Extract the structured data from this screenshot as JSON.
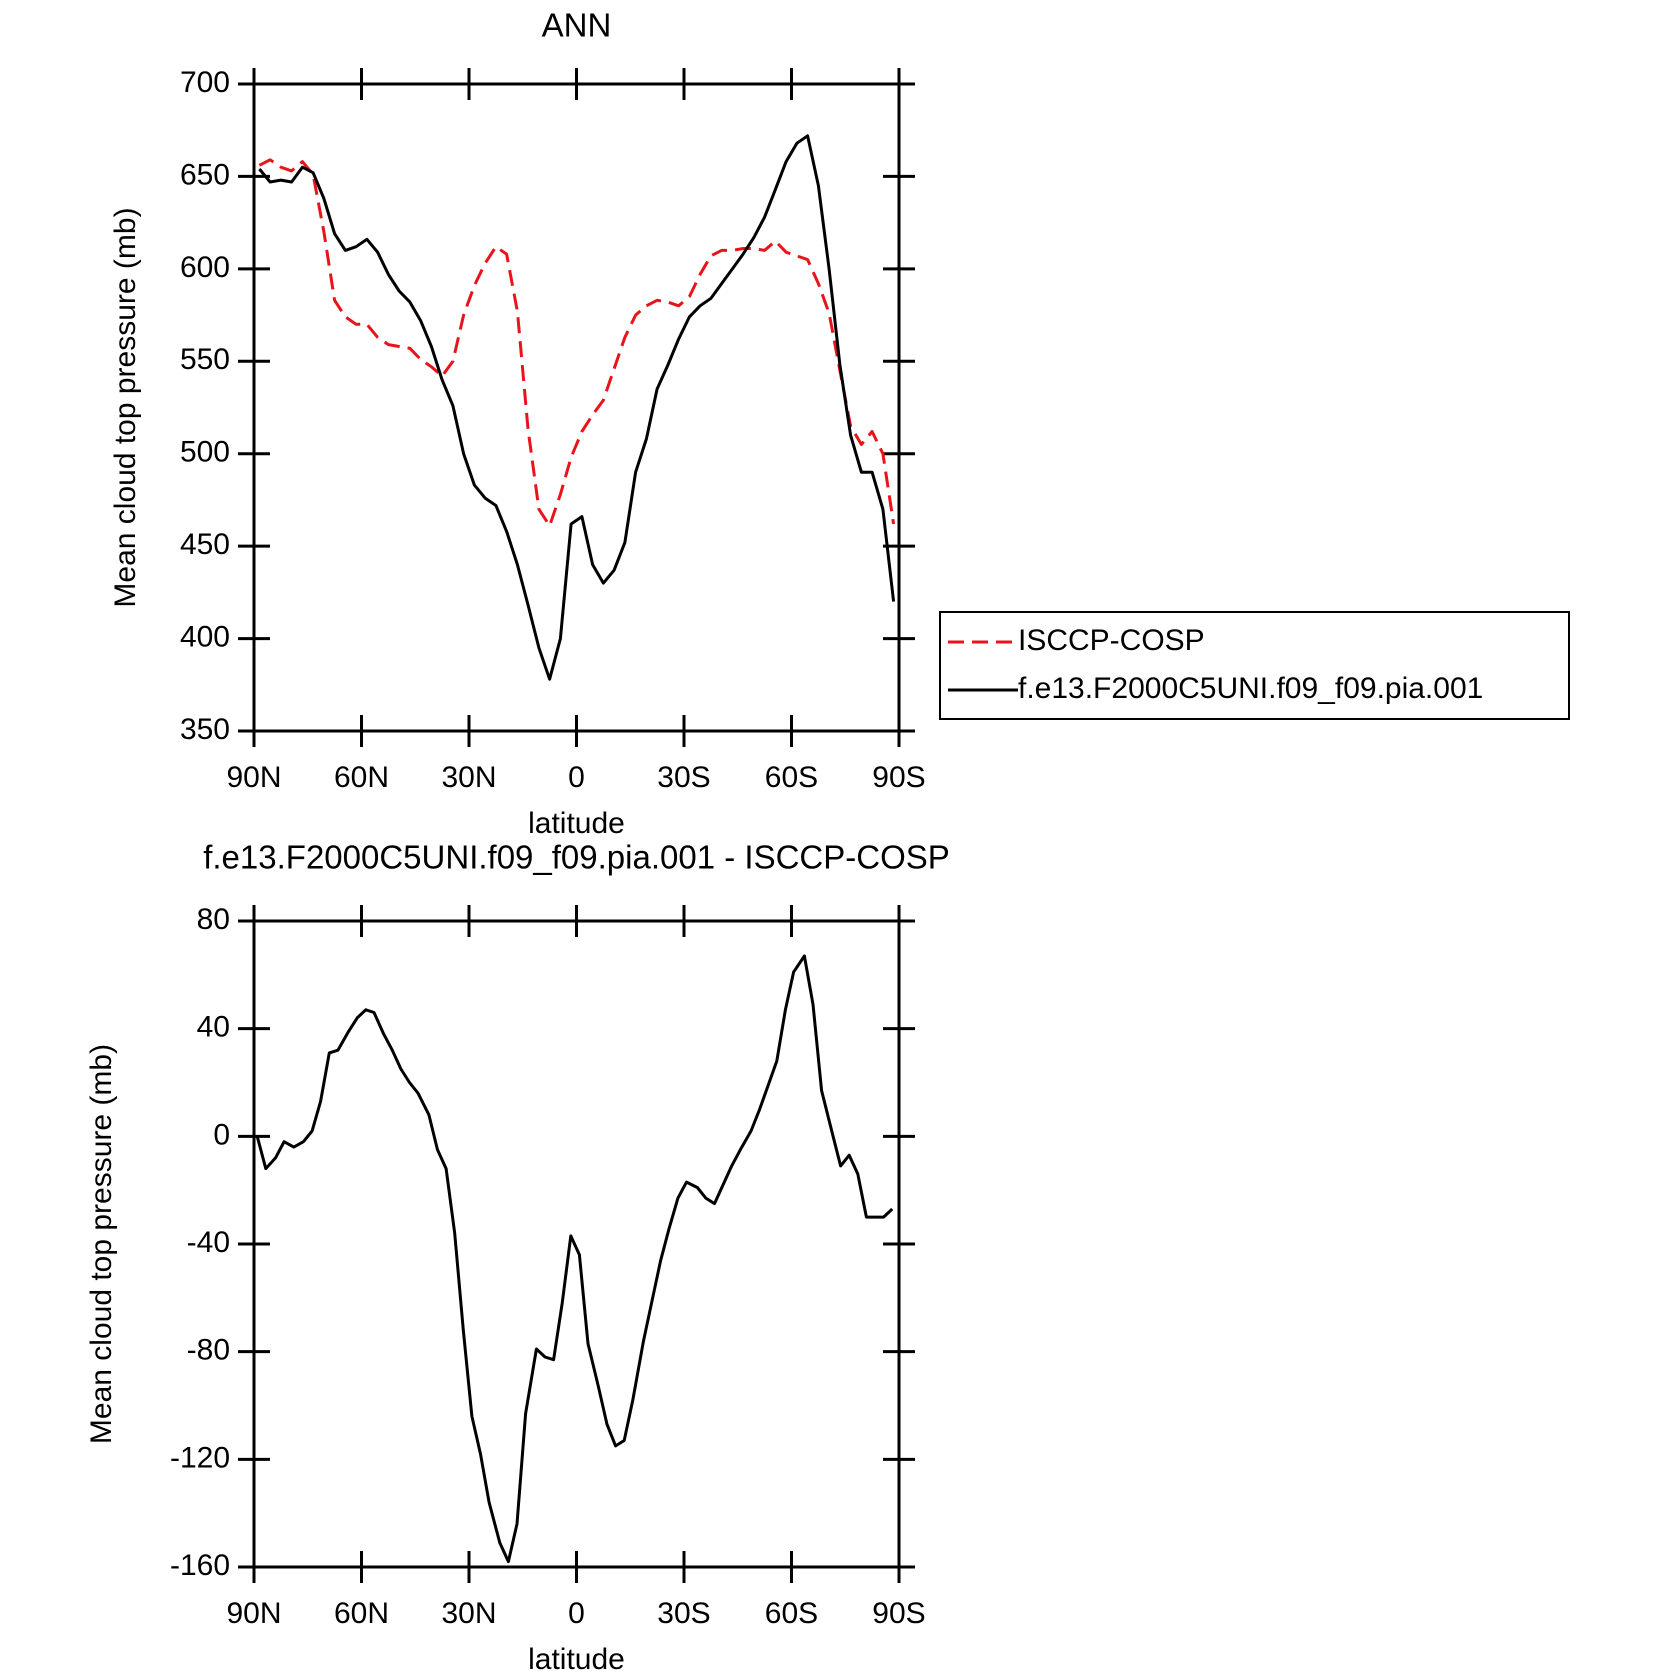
{
  "chart_data": [
    {
      "type": "line",
      "title": "ANN",
      "xlabel": "latitude",
      "ylabel": "Mean cloud top pressure (mb)",
      "xlim": [
        90,
        -90
      ],
      "xticks": [
        {
          "value": 90,
          "label": "90N"
        },
        {
          "value": 60,
          "label": "60N"
        },
        {
          "value": 30,
          "label": "30N"
        },
        0,
        {
          "value": -30,
          "label": "30S"
        },
        {
          "value": -60,
          "label": "60S"
        },
        {
          "value": -90,
          "label": "90S"
        }
      ],
      "ylim": [
        350,
        700
      ],
      "yticks": [
        350,
        400,
        450,
        500,
        550,
        600,
        650,
        700
      ],
      "legend": "right",
      "x": [
        88.5,
        85.5,
        82.5,
        79.5,
        76.5,
        73.5,
        70.5,
        67.5,
        64.5,
        61.5,
        58.5,
        55.5,
        52.5,
        49.5,
        46.5,
        43.5,
        40.5,
        37.5,
        34.5,
        31.5,
        28.5,
        25.5,
        22.5,
        19.5,
        16.5,
        13.5,
        10.5,
        7.5,
        4.5,
        1.5,
        -1.5,
        -4.5,
        -7.5,
        -10.5,
        -13.5,
        -16.5,
        -19.5,
        -22.5,
        -25.5,
        -28.5,
        -31.5,
        -34.5,
        -37.5,
        -40.5,
        -43.5,
        -46.5,
        -49.5,
        -52.5,
        -55.5,
        -58.5,
        -61.5,
        -64.5,
        -67.5,
        -70.5,
        -73.5,
        -76.5,
        -79.5,
        -82.5,
        -85.5,
        -88.5
      ],
      "series": [
        {
          "name": "ISCCP-COSP",
          "color": "#e8141c",
          "dash": true,
          "values": [
            656,
            659,
            655,
            653,
            658,
            651,
            620,
            583,
            574,
            570,
            570,
            563,
            559,
            558,
            557,
            551,
            547,
            542,
            550,
            575,
            591,
            603,
            612,
            608,
            577,
            513,
            470,
            461,
            478,
            498,
            512,
            521,
            529,
            546,
            563,
            575,
            580,
            583,
            582,
            580,
            585,
            597,
            607,
            610,
            610,
            611,
            611,
            610,
            615,
            609,
            607,
            605,
            592,
            576,
            545,
            515,
            505,
            512,
            500,
            462
          ]
        },
        {
          "name": "f.e13.F2000C5UNI.f09_f09.pia.001",
          "color": "#000000",
          "dash": false,
          "values": [
            654,
            647,
            648,
            647,
            655,
            652,
            638,
            619,
            610,
            612,
            616,
            609,
            597,
            588,
            582,
            572,
            558,
            540,
            526,
            500,
            483,
            476,
            472,
            458,
            440,
            418,
            395,
            378,
            400,
            462,
            466,
            440,
            430,
            437,
            452,
            490,
            508,
            535,
            548,
            562,
            574,
            580,
            584,
            592,
            600,
            608,
            617,
            628,
            643,
            658,
            668,
            672,
            645,
            600,
            548,
            510,
            490,
            490,
            470,
            420
          ]
        }
      ]
    },
    {
      "type": "line",
      "title": "f.e13.F2000C5UNI.f09_f09.pia.001 - ISCCP-COSP",
      "xlabel": "latitude",
      "ylabel": "Mean cloud top pressure (mb)",
      "xlim": [
        90,
        -90
      ],
      "xticks": [
        {
          "value": 90,
          "label": "90N"
        },
        {
          "value": 60,
          "label": "60N"
        },
        {
          "value": 30,
          "label": "30N"
        },
        0,
        {
          "value": -30,
          "label": "30S"
        },
        {
          "value": -60,
          "label": "60S"
        },
        {
          "value": -90,
          "label": "90S"
        }
      ],
      "ylim": [
        -160,
        80
      ],
      "yticks": [
        -160,
        -120,
        -80,
        -40,
        0,
        40,
        80
      ],
      "x": [
        89.1,
        86.7,
        84.0,
        81.6,
        78.9,
        76.2,
        73.8,
        71.4,
        69.0,
        66.6,
        63.6,
        61.2,
        58.8,
        56.5,
        53.8,
        51.4,
        49.0,
        46.6,
        44.2,
        41.2,
        38.8,
        36.4,
        34.0,
        31.6,
        29.2,
        26.8,
        24.4,
        21.4,
        19.0,
        16.6,
        14.2,
        11.2,
        8.8,
        6.4,
        4.0,
        1.6,
        -0.8,
        -3.2,
        -6.1,
        -8.5,
        -10.9,
        -13.3,
        -15.7,
        -18.7,
        -21.1,
        -23.5,
        -25.9,
        -28.3,
        -30.7,
        -33.7,
        -36.1,
        -38.5,
        -40.9,
        -43.3,
        -45.7,
        -48.7,
        -51.1,
        -53.5,
        -55.9,
        -58.3,
        -60.6,
        -63.6,
        -66.0,
        -68.4,
        -71.4,
        -73.7,
        -76.1,
        -78.5,
        -80.9,
        -83.3,
        -85.7,
        -88.1
      ],
      "series": [
        {
          "color": "#000000",
          "dash": false,
          "values": [
            0,
            -12,
            -8,
            -2,
            -4,
            -2,
            2,
            13,
            31,
            32,
            39,
            44,
            47,
            46,
            38,
            32,
            25,
            20,
            16,
            8,
            -5,
            -12,
            -36,
            -72,
            -104,
            -118,
            -136,
            -151,
            -158,
            -144,
            -103,
            -79,
            -82,
            -83,
            -62,
            -37,
            -44,
            -77,
            -93,
            -107,
            -115,
            -113,
            -98,
            -76,
            -61,
            -46,
            -34,
            -23,
            -17,
            -19,
            -23,
            -25,
            -18,
            -11,
            -5,
            2,
            10,
            19,
            28,
            47,
            61,
            67,
            49,
            17,
            1,
            -11,
            -7,
            -14,
            -30,
            -30,
            -30,
            -27
          ]
        }
      ]
    }
  ]
}
